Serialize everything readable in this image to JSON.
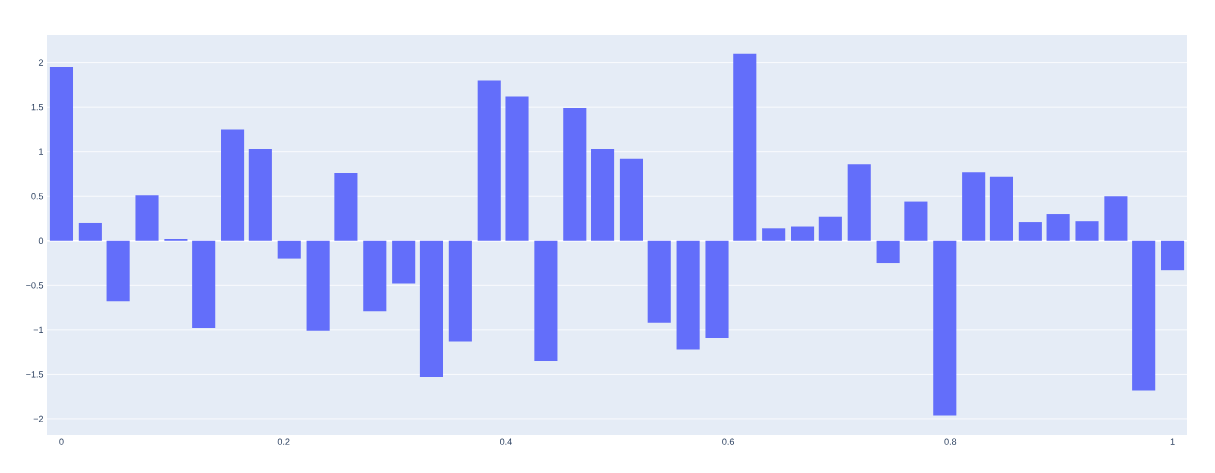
{
  "chart_data": {
    "type": "bar",
    "x": [
      0,
      0.026,
      0.051,
      0.077,
      0.103,
      0.128,
      0.154,
      0.179,
      0.205,
      0.231,
      0.256,
      0.282,
      0.308,
      0.333,
      0.359,
      0.385,
      0.41,
      0.436,
      0.462,
      0.487,
      0.513,
      0.538,
      0.564,
      0.59,
      0.615,
      0.641,
      0.667,
      0.692,
      0.718,
      0.744,
      0.769,
      0.795,
      0.821,
      0.846,
      0.872,
      0.897,
      0.923,
      0.949,
      0.974,
      1
    ],
    "values": [
      1.95,
      0.2,
      -0.68,
      0.51,
      0.02,
      -0.98,
      1.25,
      1.03,
      -0.2,
      -1.01,
      0.76,
      -0.79,
      -0.48,
      -1.53,
      -1.13,
      1.8,
      1.62,
      -1.35,
      1.49,
      1.03,
      0.92,
      -0.92,
      -1.22,
      -1.09,
      2.1,
      0.14,
      0.16,
      0.27,
      0.86,
      -0.25,
      0.44,
      -1.96,
      0.77,
      0.72,
      0.21,
      0.3,
      0.22,
      0.5,
      -1.68,
      -0.33
    ],
    "color": "#636efa",
    "xlim": [
      -0.013,
      1.013
    ],
    "ylim": [
      -2.18,
      2.31
    ],
    "xticks": [
      0,
      0.2,
      0.4,
      0.6,
      0.8,
      1
    ],
    "yticks": [
      {
        "value": -2,
        "label": "−2"
      },
      {
        "value": -1.5,
        "label": "−1.5"
      },
      {
        "value": -1,
        "label": "−1"
      },
      {
        "value": -0.5,
        "label": "−0.5"
      },
      0,
      0.5,
      1,
      1.5,
      2
    ],
    "grid": "y"
  }
}
